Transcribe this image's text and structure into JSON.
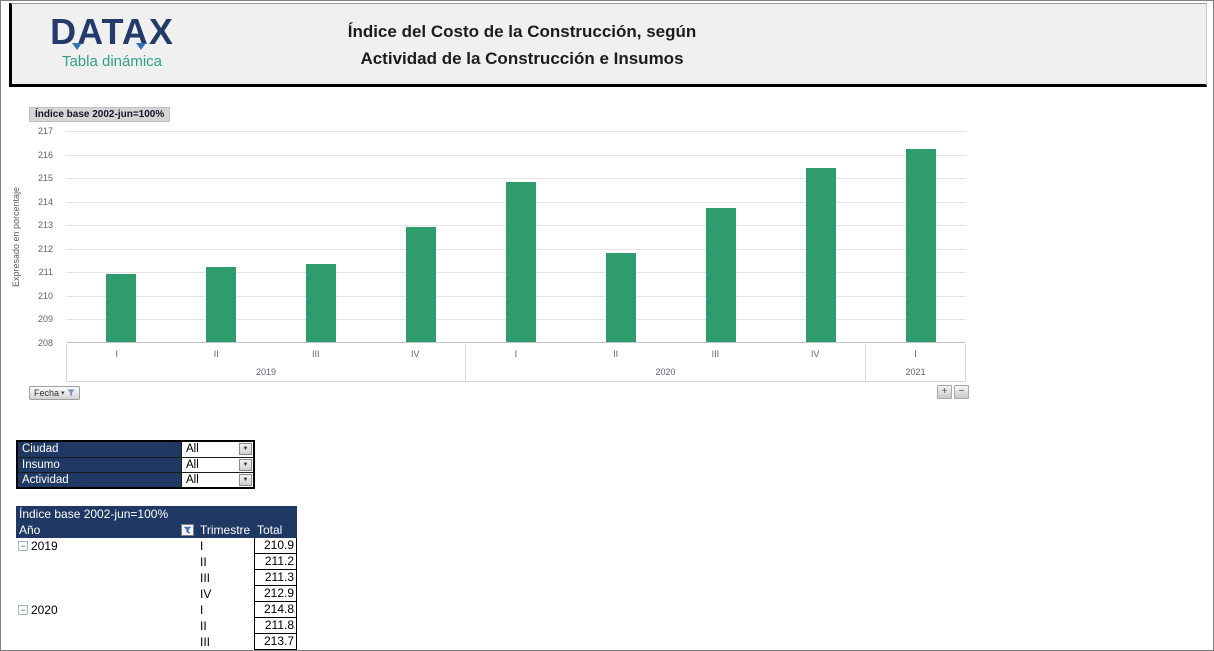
{
  "page": {
    "title_line1": "Índice del Costo de la Construcción, según",
    "title_line2": "Actividad de la Construcción e Insumos"
  },
  "logo": {
    "name": "DATAX",
    "subtitle": "Tabla dinámica"
  },
  "colors": {
    "navy": "#1f3864",
    "bar_green": "#2f9c6e",
    "logo_navy": "#243a68",
    "logo_teal": "#31a186",
    "header_bg": "#f0f0f0"
  },
  "chart": {
    "values_field_button": "Índice base 2002-jun=100%",
    "axis_field_button": "Fecha",
    "y_axis_title": "Expresado en porcentaje",
    "zoom_in_label": "+",
    "zoom_out_label": "−"
  },
  "chart_data": {
    "type": "bar",
    "title": "Índice del Costo de la Construcción, según Actividad de la Construcción e Insumos",
    "ylabel": "Expresado en porcentaje",
    "value_field_label": "Índice base 2002-jun=100%",
    "axis_field_label": "Fecha",
    "categories": [
      "I",
      "II",
      "III",
      "IV",
      "I",
      "II",
      "III",
      "IV",
      "I"
    ],
    "year_groups": [
      {
        "label": "2019",
        "quarters": [
          "I",
          "II",
          "III",
          "IV"
        ],
        "values": [
          210.9,
          211.2,
          211.3,
          212.9
        ]
      },
      {
        "label": "2020",
        "quarters": [
          "I",
          "II",
          "III",
          "IV"
        ],
        "values": [
          214.8,
          211.8,
          213.7,
          215.4
        ]
      },
      {
        "label": "2021",
        "quarters": [
          "I"
        ],
        "values": [
          216.2
        ]
      }
    ],
    "values": [
      210.9,
      211.2,
      211.3,
      212.9,
      214.8,
      211.8,
      213.7,
      215.4,
      216.2
    ],
    "ylim": [
      208,
      217
    ],
    "ytick_step": 1,
    "bar_color": "#2f9c6e",
    "grid": true,
    "legend": false
  },
  "filters": {
    "rows": [
      {
        "label": "Ciudad",
        "value": "All"
      },
      {
        "label": "Insumo",
        "value": "All"
      },
      {
        "label": "Actividad",
        "value": "All"
      }
    ],
    "dropdown_glyph": "▼"
  },
  "pivot": {
    "title": "Índice base 2002-jun=100%",
    "columns": [
      "Año",
      "Trimestre",
      "Total"
    ],
    "rows": [
      {
        "year": "2019",
        "expand": true,
        "quarter": "I",
        "total": "210.9"
      },
      {
        "year": "",
        "expand": false,
        "quarter": "II",
        "total": "211.2"
      },
      {
        "year": "",
        "expand": false,
        "quarter": "III",
        "total": "211.3"
      },
      {
        "year": "",
        "expand": false,
        "quarter": "IV",
        "total": "212.9"
      },
      {
        "year": "2020",
        "expand": true,
        "quarter": "I",
        "total": "214.8"
      },
      {
        "year": "",
        "expand": false,
        "quarter": "II",
        "total": "211.8"
      },
      {
        "year": "",
        "expand": false,
        "quarter": "III",
        "total": "213.7"
      }
    ],
    "collapse_glyph": "−"
  }
}
